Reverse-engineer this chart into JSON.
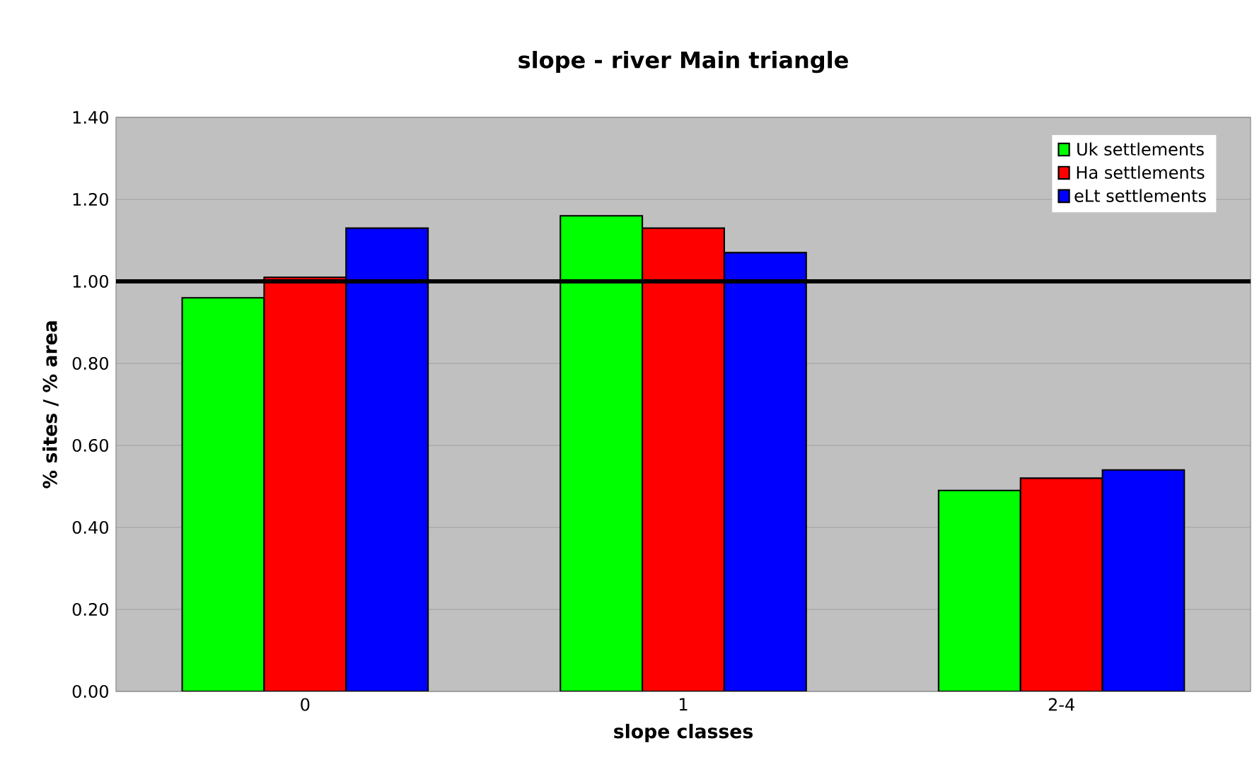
{
  "chart_data": {
    "type": "bar",
    "title": "slope - river Main triangle",
    "xlabel": "slope classes",
    "ylabel": "% sites / % area",
    "categories": [
      "0",
      "1",
      "2-4"
    ],
    "series": [
      {
        "name": "Uk settlements",
        "color": "#00ff00",
        "values": [
          0.96,
          1.16,
          0.49
        ]
      },
      {
        "name": "Ha settlements",
        "color": "#ff0000",
        "values": [
          1.01,
          1.13,
          0.52
        ]
      },
      {
        "name": "eLt settlements",
        "color": "#0000ff",
        "values": [
          1.13,
          1.07,
          0.54
        ]
      }
    ],
    "ylim": [
      0,
      1.4
    ],
    "yticks": [
      {
        "value": 0,
        "label": "0.00"
      },
      {
        "value": 0.2,
        "label": "0.20"
      },
      {
        "value": 0.4,
        "label": "0.40"
      },
      {
        "value": 0.6,
        "label": "0.60"
      },
      {
        "value": 0.8,
        "label": "0.80"
      },
      {
        "value": 1.0,
        "label": "1.00"
      },
      {
        "value": 1.2,
        "label": "1.20"
      },
      {
        "value": 1.4,
        "label": "1.40"
      }
    ],
    "ref_lines": [
      {
        "axis": "y",
        "value": 1.0,
        "color": "#000000"
      }
    ],
    "grid": "y",
    "legend": "top right"
  }
}
